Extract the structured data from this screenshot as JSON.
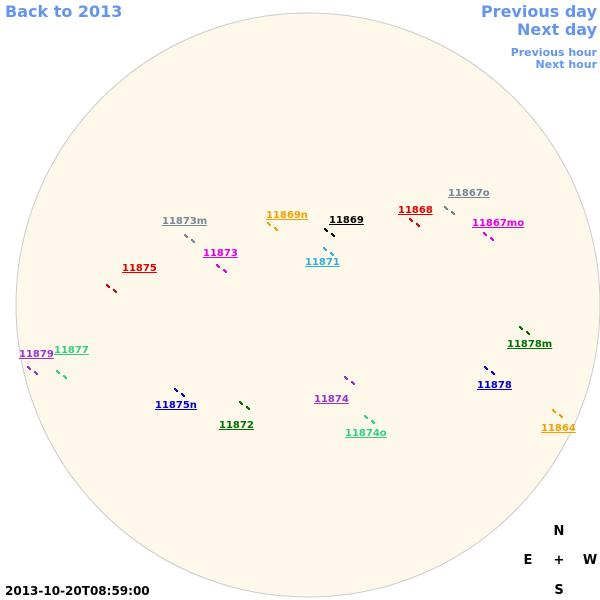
{
  "nav": {
    "back_year": "Back to 2013",
    "previous_day": "Previous day",
    "next_day": "Next day",
    "previous_hour": "Previous hour",
    "next_hour": "Next hour"
  },
  "regions": [
    {
      "label": "11873m",
      "color": "#778899"
    },
    {
      "label": "11869n",
      "color": "#f0a000"
    },
    {
      "label": "11869",
      "color": "#000000"
    },
    {
      "label": "11868",
      "color": "#e00000"
    },
    {
      "label": "11867o",
      "color": "#778899"
    },
    {
      "label": "11867mo",
      "color": "#e000e0"
    },
    {
      "label": "11873",
      "color": "#e000e0"
    },
    {
      "label": "11871",
      "color": "#30b0e0"
    },
    {
      "label": "11875",
      "color": "#e00000"
    },
    {
      "label": "11879",
      "color": "#9932cc"
    },
    {
      "label": "11877",
      "color": "#30d080"
    },
    {
      "label": "11878m",
      "color": "#007000"
    },
    {
      "label": "11878",
      "color": "#0000cc"
    },
    {
      "label": "11874",
      "color": "#9932cc"
    },
    {
      "label": "11875n",
      "color": "#0000cc"
    },
    {
      "label": "11872",
      "color": "#007000"
    },
    {
      "label": "11874o",
      "color": "#30d080"
    },
    {
      "label": "11864",
      "color": "#f0a000"
    }
  ],
  "compass": {
    "north": "N",
    "east": "E",
    "center": "+",
    "west": "W",
    "south": "S"
  },
  "timestamp": "2013-10-20T08:59:00"
}
